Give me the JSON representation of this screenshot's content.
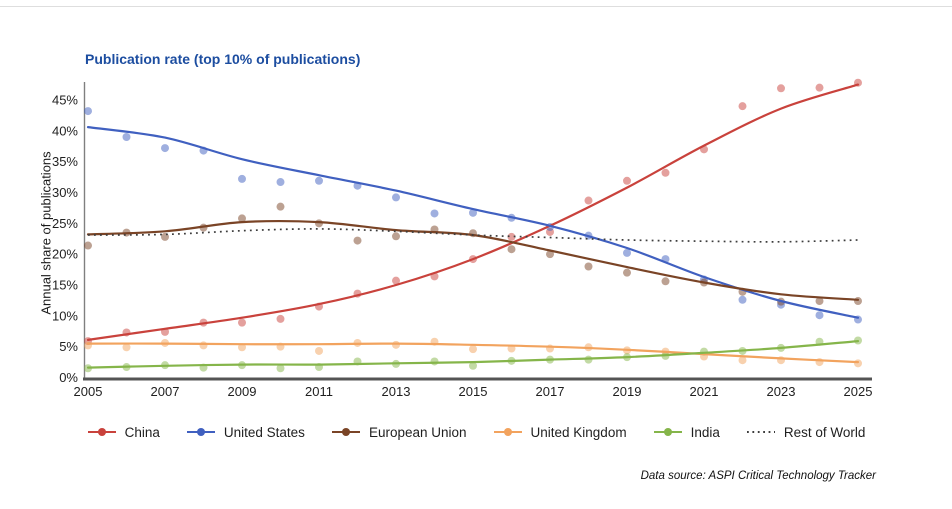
{
  "chart_data": {
    "type": "line",
    "title": "Publication rate (top 10% of publications)",
    "ylabel": "Annual share of publications",
    "xlabel": "",
    "unit": "%",
    "grid": false,
    "legend_position": "bottom",
    "source_note": "Data source: ASPI Critical Technology Tracker",
    "x": [
      2005,
      2006,
      2007,
      2008,
      2009,
      2010,
      2011,
      2012,
      2013,
      2014,
      2015,
      2016,
      2017,
      2018,
      2019,
      2020,
      2021,
      2022,
      2023,
      2024,
      2025
    ],
    "x_tick_labels": [
      "2005",
      "2007",
      "2009",
      "2011",
      "2013",
      "2015",
      "2017",
      "2019",
      "2021",
      "2023",
      "2025"
    ],
    "y_ticks": [
      0,
      5,
      10,
      15,
      20,
      25,
      30,
      35,
      40,
      45
    ],
    "y_tick_labels": [
      "0%",
      "5%",
      "10%",
      "15%",
      "20%",
      "25%",
      "30%",
      "35%",
      "40%",
      "45%"
    ],
    "ylim": [
      0,
      48
    ],
    "trend_x": [
      2005,
      2007,
      2009,
      2011,
      2013,
      2015,
      2017,
      2019,
      2021,
      2023,
      2025
    ],
    "series": [
      {
        "name": "China",
        "color": "#c9423c",
        "style": "solid",
        "scatter": [
          5.9,
          7.3,
          7.4,
          8.9,
          8.9,
          9.5,
          11.5,
          13.6,
          15.7,
          16.4,
          19.2,
          22.8,
          23.6,
          28.7,
          31.9,
          33.2,
          37.0,
          44.0,
          46.9,
          47.0,
          47.8
        ],
        "trend": [
          6.1,
          7.9,
          9.7,
          11.9,
          15.0,
          19.2,
          24.6,
          30.8,
          37.6,
          43.6,
          47.5
        ]
      },
      {
        "name": "United States",
        "color": "#4060c0",
        "style": "solid",
        "scatter": [
          43.2,
          39.0,
          37.2,
          36.8,
          32.2,
          31.7,
          31.9,
          31.1,
          29.2,
          26.6,
          26.7,
          25.9,
          24.4,
          23.0,
          20.2,
          19.2,
          15.9,
          12.6,
          11.8,
          10.1,
          9.4
        ],
        "trend": [
          40.6,
          38.9,
          35.4,
          32.8,
          30.3,
          27.3,
          24.6,
          21.0,
          16.3,
          12.4,
          9.7
        ]
      },
      {
        "name": "European Union",
        "color": "#7a4426",
        "style": "solid",
        "scatter": [
          21.4,
          23.5,
          22.8,
          24.3,
          25.8,
          27.7,
          25.0,
          22.2,
          22.9,
          24.0,
          23.4,
          20.8,
          20.0,
          18.0,
          17.0,
          15.6,
          15.4,
          13.9,
          12.3,
          12.4,
          12.4
        ],
        "trend": [
          23.2,
          23.7,
          25.2,
          25.2,
          23.9,
          23.1,
          20.6,
          17.9,
          15.4,
          13.5,
          12.6
        ]
      },
      {
        "name": "United Kingdom",
        "color": "#f2a35e",
        "style": "solid",
        "scatter": [
          5.2,
          4.9,
          5.6,
          5.2,
          4.9,
          5.0,
          4.3,
          5.6,
          5.3,
          5.8,
          4.6,
          4.7,
          4.7,
          4.9,
          4.4,
          4.2,
          3.4,
          2.8,
          2.8,
          2.5,
          2.3
        ],
        "trend": [
          5.5,
          5.5,
          5.4,
          5.4,
          5.5,
          5.3,
          5.0,
          4.5,
          3.8,
          3.1,
          2.5
        ]
      },
      {
        "name": "India",
        "color": "#85b54a",
        "style": "solid",
        "scatter": [
          1.5,
          1.7,
          2.0,
          1.6,
          2.0,
          1.5,
          1.7,
          2.6,
          2.2,
          2.6,
          1.9,
          2.7,
          2.9,
          2.9,
          3.3,
          3.5,
          4.2,
          4.3,
          4.8,
          5.8,
          6.0
        ],
        "trend": [
          1.6,
          1.9,
          2.1,
          2.1,
          2.3,
          2.5,
          2.9,
          3.3,
          4.0,
          4.8,
          5.9
        ]
      },
      {
        "name": "Rest of World",
        "color": "#3d3d3d",
        "style": "dotted",
        "scatter": null,
        "trend": [
          23.1,
          23.2,
          23.8,
          24.1,
          23.7,
          23.1,
          22.7,
          22.3,
          22.1,
          22.0,
          22.3
        ]
      }
    ]
  }
}
